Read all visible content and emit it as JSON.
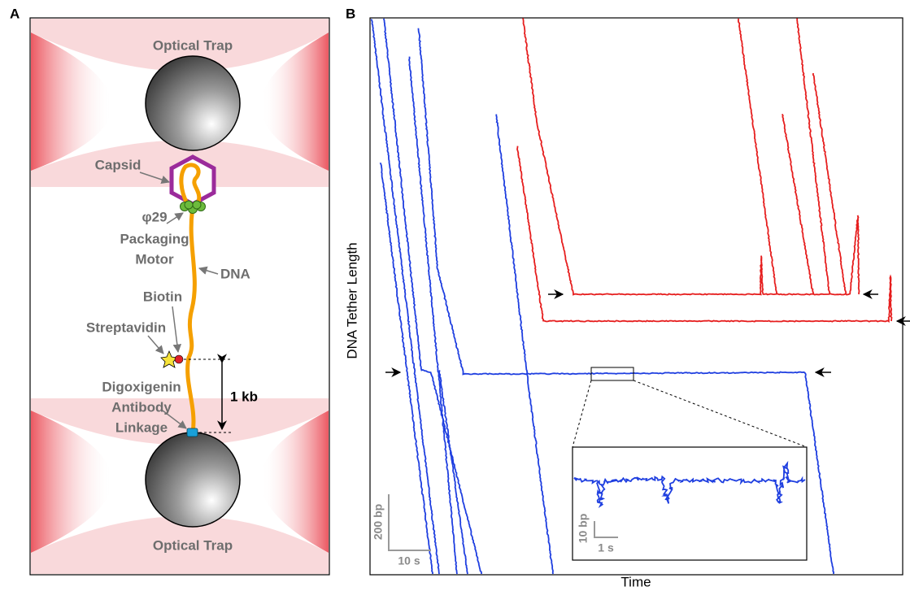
{
  "panels": {
    "a": {
      "label": "A",
      "top_trap": "Optical Trap",
      "bottom_trap": "Optical Trap",
      "capsid": "Capsid",
      "motor": [
        "φ29",
        "Packaging",
        "Motor"
      ],
      "dna": "DNA",
      "biotin": "Biotin",
      "streptavidin": "Streptavidin",
      "linkage": [
        "Digoxigenin",
        "Antibody",
        "Linkage"
      ],
      "distance": "1 kb"
    },
    "b": {
      "label": "B",
      "y_axis": "DNA Tether Length",
      "x_axis": "Time",
      "scale_y": "200 bp",
      "scale_x": "10 s",
      "inset_scale_y": "10 bp",
      "inset_scale_x": "1 s"
    }
  }
}
